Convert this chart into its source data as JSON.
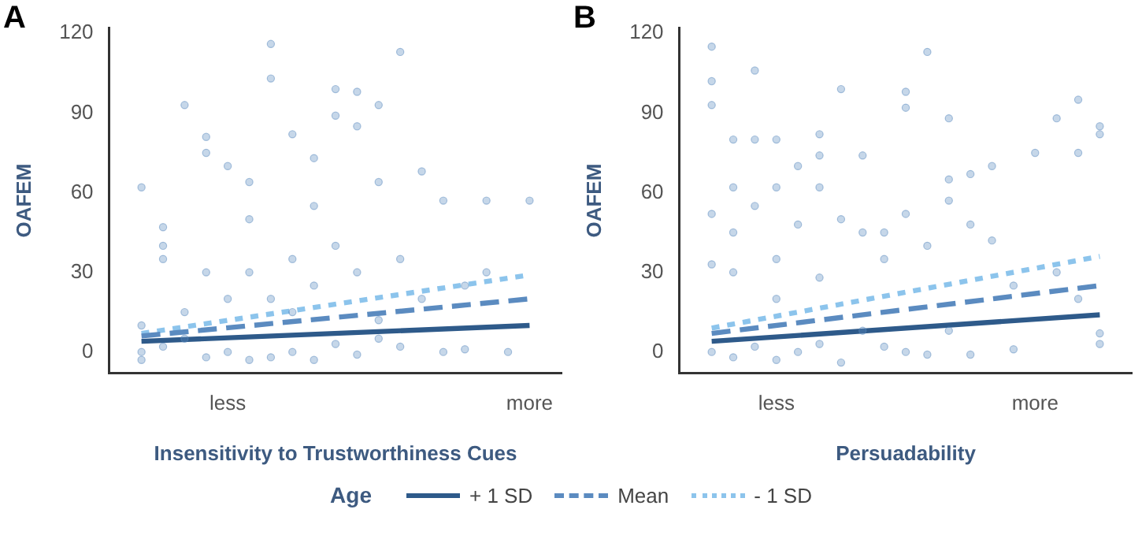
{
  "chart_data": [
    {
      "type": "scatter",
      "title": "A",
      "xlabel": "Insensitivity to Trustworthiness Cues",
      "ylabel": "OAFEM",
      "legend_title": "Age",
      "legend": "bottom",
      "grid": false,
      "marker": "circle",
      "categories": [
        null,
        null,
        null,
        null,
        null,
        "less",
        null,
        null,
        null,
        null,
        null,
        null,
        null,
        null,
        null,
        null,
        null,
        null,
        null,
        "more",
        null
      ],
      "ylim": [
        -8,
        122
      ],
      "yticks": [
        0,
        30,
        60,
        90,
        120
      ],
      "series": [
        {
          "type": "scatter",
          "color": "#5b8bc0",
          "values": [
            null,
            62,
            40,
            93,
            81,
            70,
            64,
            116,
            82,
            73,
            99,
            98,
            93,
            113,
            68,
            57,
            25,
            57,
            0,
            57,
            null
          ]
        },
        {
          "type": "scatter",
          "color": "#5b8bc0",
          "values": [
            null,
            10,
            47,
            15,
            75,
            20,
            50,
            103,
            35,
            55,
            89,
            85,
            64,
            35,
            20,
            0,
            1,
            30,
            null,
            null,
            null
          ]
        },
        {
          "type": "scatter",
          "color": "#5b8bc0",
          "values": [
            null,
            0,
            35,
            5,
            -2,
            0,
            30,
            20,
            0,
            25,
            40,
            30,
            12,
            2,
            null,
            null,
            null,
            null,
            null,
            null,
            null
          ]
        },
        {
          "type": "scatter",
          "color": "#5b8bc0",
          "values": [
            null,
            -3,
            2,
            null,
            30,
            null,
            -3,
            -2,
            15,
            -3,
            3,
            -1,
            5,
            null,
            null,
            null,
            null,
            null,
            null,
            null,
            null
          ]
        },
        {
          "type": "line",
          "name": "+ 1 SD",
          "color": "#2e5a8a",
          "line_style": "solid",
          "marker": "none",
          "values": [
            null,
            4,
            null,
            null,
            null,
            null,
            null,
            null,
            null,
            null,
            null,
            null,
            null,
            null,
            null,
            null,
            null,
            null,
            null,
            10,
            null
          ]
        },
        {
          "type": "line",
          "name": "Mean",
          "color": "#5b8bc0",
          "line_style": "dashed",
          "marker": "none",
          "values": [
            null,
            6,
            null,
            null,
            null,
            null,
            null,
            null,
            null,
            null,
            null,
            null,
            null,
            null,
            null,
            null,
            null,
            null,
            null,
            20,
            null
          ]
        },
        {
          "type": "line",
          "name": "- 1 SD",
          "color": "#8cc4ec",
          "line_style": "dotted",
          "marker": "none",
          "values": [
            null,
            7,
            null,
            null,
            null,
            null,
            null,
            null,
            null,
            null,
            null,
            null,
            null,
            null,
            null,
            null,
            null,
            null,
            null,
            29,
            null
          ]
        }
      ]
    },
    {
      "type": "scatter",
      "title": "B",
      "xlabel": "Persuadability",
      "ylabel": "OAFEM",
      "grid": false,
      "marker": "circle",
      "categories": [
        null,
        null,
        null,
        null,
        "less",
        null,
        null,
        null,
        null,
        null,
        null,
        null,
        null,
        null,
        null,
        null,
        "more",
        null,
        null,
        null,
        null
      ],
      "ylim": [
        -8,
        122
      ],
      "yticks": [
        0,
        30,
        60,
        90,
        120
      ],
      "series": [
        {
          "type": "scatter",
          "color": "#5b8bc0",
          "values": [
            null,
            115,
            80,
            106,
            80,
            70,
            82,
            99,
            74,
            45,
            98,
            113,
            88,
            67,
            70,
            25,
            75,
            88,
            95,
            85,
            null
          ]
        },
        {
          "type": "scatter",
          "color": "#5b8bc0",
          "values": [
            null,
            102,
            62,
            80,
            62,
            48,
            74,
            50,
            45,
            35,
            92,
            40,
            65,
            48,
            42,
            1,
            null,
            30,
            75,
            82,
            null
          ]
        },
        {
          "type": "scatter",
          "color": "#5b8bc0",
          "values": [
            null,
            93,
            45,
            55,
            35,
            0,
            62,
            -4,
            8,
            2,
            52,
            -1,
            57,
            -1,
            null,
            null,
            null,
            null,
            20,
            3,
            null
          ]
        },
        {
          "type": "scatter",
          "color": "#5b8bc0",
          "values": [
            null,
            52,
            -2,
            2,
            20,
            null,
            3,
            null,
            null,
            null,
            0,
            null,
            8,
            null,
            null,
            null,
            null,
            null,
            null,
            7,
            null
          ]
        },
        {
          "type": "scatter",
          "color": "#5b8bc0",
          "values": [
            null,
            33,
            30,
            null,
            -3,
            null,
            28,
            null,
            null,
            null,
            null,
            null,
            null,
            null,
            null,
            null,
            null,
            null,
            null,
            null,
            null
          ]
        },
        {
          "type": "scatter",
          "color": "#5b8bc0",
          "values": [
            null,
            0,
            null,
            null,
            null,
            null,
            null,
            null,
            null,
            null,
            null,
            null,
            null,
            null,
            null,
            null,
            null,
            null,
            null,
            null,
            null
          ]
        },
        {
          "type": "line",
          "name": "+ 1 SD",
          "color": "#2e5a8a",
          "line_style": "solid",
          "marker": "none",
          "values": [
            null,
            4,
            null,
            null,
            null,
            null,
            null,
            null,
            null,
            null,
            null,
            null,
            null,
            null,
            null,
            null,
            null,
            null,
            null,
            14,
            null
          ]
        },
        {
          "type": "line",
          "name": "Mean",
          "color": "#5b8bc0",
          "line_style": "dashed",
          "marker": "none",
          "values": [
            null,
            7,
            null,
            null,
            null,
            null,
            null,
            null,
            null,
            null,
            null,
            null,
            null,
            null,
            null,
            null,
            null,
            null,
            null,
            25,
            null
          ]
        },
        {
          "type": "line",
          "name": "- 1 SD",
          "color": "#8cc4ec",
          "line_style": "dotted",
          "marker": "none",
          "values": [
            null,
            9,
            null,
            null,
            null,
            null,
            null,
            null,
            null,
            null,
            null,
            null,
            null,
            null,
            null,
            null,
            null,
            null,
            null,
            36,
            null
          ]
        }
      ]
    }
  ]
}
